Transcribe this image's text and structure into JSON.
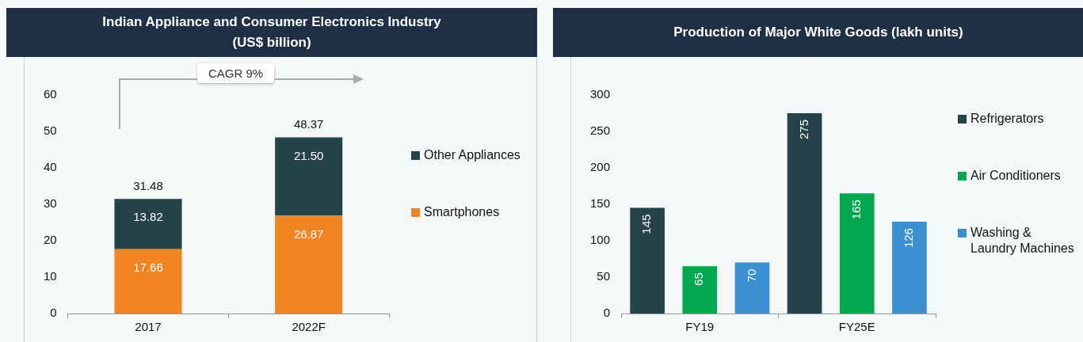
{
  "chart_data": [
    {
      "type": "bar",
      "title": "Indian Appliance and Consumer Electronics Industry\n(US$ billion)",
      "categories": [
        "2017",
        "2022F"
      ],
      "stacked": true,
      "series": [
        {
          "name": "Smartphones",
          "color": "#f28522",
          "values": [
            17.66,
            26.87
          ]
        },
        {
          "name": "Other Appliances",
          "color": "#264349",
          "values": [
            13.82,
            21.5
          ]
        }
      ],
      "value_labels": [
        [
          "17.66",
          "26.87"
        ],
        [
          "13.82",
          "21.50"
        ]
      ],
      "totals": [
        "31.48",
        "48.37"
      ],
      "ylim": [
        0,
        60
      ],
      "yticks": [
        0,
        10,
        20,
        30,
        40,
        50,
        60
      ],
      "grid": false,
      "legend": "right",
      "annotations": [
        "CAGR 9%"
      ]
    },
    {
      "type": "bar",
      "title": "Production of Major White Goods (lakh units)",
      "categories": [
        "FY19",
        "FY25E"
      ],
      "series": [
        {
          "name": "Refrigerators",
          "color": "#264349",
          "values": [
            145,
            275
          ]
        },
        {
          "name": "Air Conditioners",
          "color": "#00a94f",
          "values": [
            65,
            165
          ]
        },
        {
          "name": "Washing & Laundry Machines",
          "color": "#3a90d0",
          "values": [
            70,
            126
          ]
        }
      ],
      "data_labels": true,
      "ylim": [
        0,
        300
      ],
      "yticks": [
        0,
        50,
        100,
        150,
        200,
        250,
        300
      ],
      "grid": false,
      "legend": "right"
    }
  ]
}
